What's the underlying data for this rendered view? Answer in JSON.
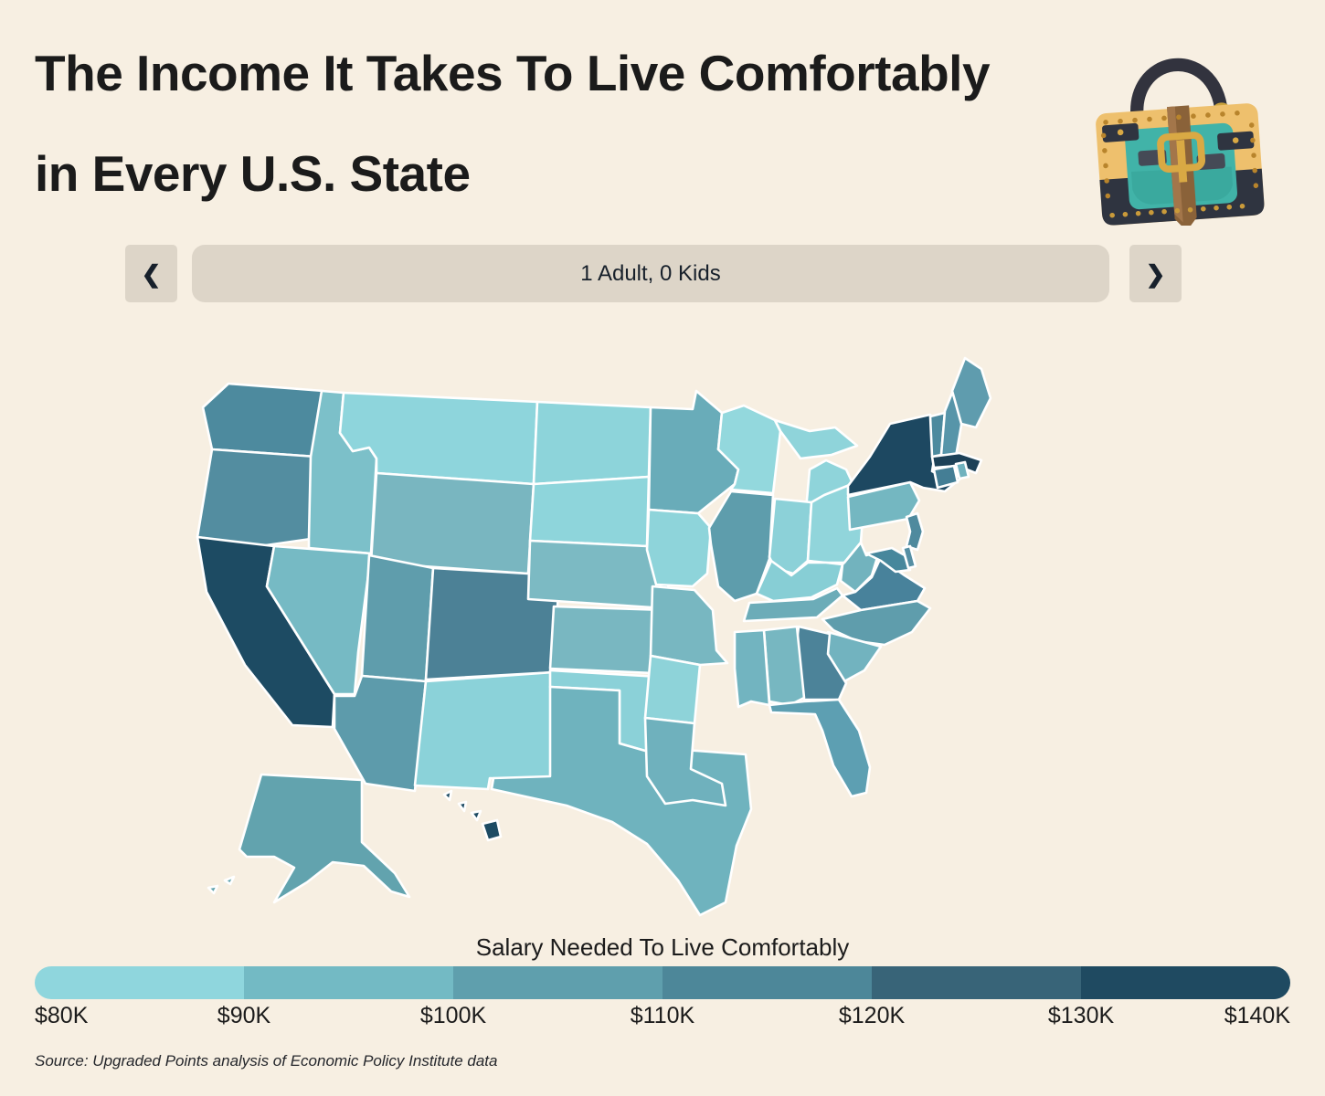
{
  "header": {
    "title_line1": "The Income It Takes To Live Comfortably",
    "title_line2": "in Every U.S. State"
  },
  "nav": {
    "scenario_label": "1 Adult, 0 Kids",
    "prev_icon": "❮",
    "next_icon": "❯"
  },
  "footer": {
    "source": "Source: Upgraded Points analysis of Economic Policy Institute data"
  },
  "icons": {
    "logo": "handbag-illustration",
    "prev": "chevron-left",
    "next": "chevron-right"
  },
  "theme": {
    "bg": "#f7efe2",
    "ink": "#1b1b1b",
    "panel": "#ddd5c8",
    "map_stroke": "#ffffff",
    "logo_tan": "#eec06d",
    "logo_teal": "#41b3a8",
    "logo_dark": "#2f3440",
    "logo_gold": "#c08a2f",
    "logo_brown": "#8a6239"
  },
  "chart_data": {
    "type": "choropleth",
    "title": "The Income It Takes To Live Comfortably in Every U.S. State",
    "scenario": "1 Adult, 0 Kids",
    "legend_title": "Salary Needed To Live Comfortably",
    "legend_position": "bottom",
    "scale_ticks": [
      "$80K",
      "$90K",
      "$100K",
      "$110K",
      "$120K",
      "$130K",
      "$140K"
    ],
    "scale_colors": [
      "#8fd6dd",
      "#73bac4",
      "#5f9fad",
      "#4d8799",
      "#386478",
      "#1f4a61"
    ],
    "scale_range": [
      "$80K",
      "$140K"
    ],
    "states": [
      {
        "id": "AL",
        "name": "Alabama",
        "fill": "#77b7c1",
        "bucket": "$90K-$100K"
      },
      {
        "id": "AK",
        "name": "Alaska",
        "fill": "#62a3ae",
        "bucket": "$90K-$100K"
      },
      {
        "id": "AZ",
        "name": "Arizona",
        "fill": "#5d9bab",
        "bucket": "$100K-$110K"
      },
      {
        "id": "AR",
        "name": "Arkansas",
        "fill": "#8ed3d9",
        "bucket": "$80K-$90K"
      },
      {
        "id": "CA",
        "name": "California",
        "fill": "#1d4b63",
        "bucket": "$130K-$140K"
      },
      {
        "id": "CO",
        "name": "Colorado",
        "fill": "#4c8196",
        "bucket": "$110K-$120K"
      },
      {
        "id": "CT",
        "name": "Connecticut",
        "fill": "#447e95",
        "bucket": "$110K-$120K"
      },
      {
        "id": "DE",
        "name": "Delaware",
        "fill": "#568fa3",
        "bucket": "$100K-$110K"
      },
      {
        "id": "FL",
        "name": "Florida",
        "fill": "#5d9fb2",
        "bucket": "$100K-$110K"
      },
      {
        "id": "GA",
        "name": "Georgia",
        "fill": "#4c8399",
        "bucket": "$110K-$120K"
      },
      {
        "id": "HI",
        "name": "Hawaii",
        "fill": "#1d4b63",
        "bucket": "$130K-$140K"
      },
      {
        "id": "ID",
        "name": "Idaho",
        "fill": "#7cc0c9",
        "bucket": "$90K-$100K"
      },
      {
        "id": "IL",
        "name": "Illinois",
        "fill": "#5e9dac",
        "bucket": "$100K-$110K"
      },
      {
        "id": "IN",
        "name": "Indiana",
        "fill": "#8cd1d8",
        "bucket": "$80K-$90K"
      },
      {
        "id": "IA",
        "name": "Iowa",
        "fill": "#8ed4da",
        "bucket": "$80K-$90K"
      },
      {
        "id": "KS",
        "name": "Kansas",
        "fill": "#79b7c1",
        "bucket": "$90K-$100K"
      },
      {
        "id": "KY",
        "name": "Kentucky",
        "fill": "#87ced5",
        "bucket": "$80K-$90K"
      },
      {
        "id": "LA",
        "name": "Louisiana",
        "fill": "#6fb1bd",
        "bucket": "$90K-$100K"
      },
      {
        "id": "ME",
        "name": "Maine",
        "fill": "#5f9cae",
        "bucket": "$100K-$110K"
      },
      {
        "id": "MD",
        "name": "Maryland",
        "fill": "#47879c",
        "bucket": "$110K-$120K"
      },
      {
        "id": "MA",
        "name": "Massachusetts",
        "fill": "#1d4157",
        "bucket": "$130K-$140K"
      },
      {
        "id": "MI",
        "name": "Michigan",
        "fill": "#8fd4da",
        "bucket": "$80K-$90K"
      },
      {
        "id": "MN",
        "name": "Minnesota",
        "fill": "#69acb9",
        "bucket": "$90K-$100K"
      },
      {
        "id": "MS",
        "name": "Mississippi",
        "fill": "#72b4c0",
        "bucket": "$90K-$100K"
      },
      {
        "id": "MO",
        "name": "Missouri",
        "fill": "#78b7c1",
        "bucket": "$90K-$100K"
      },
      {
        "id": "MT",
        "name": "Montana",
        "fill": "#8ed5dc",
        "bucket": "$80K-$90K"
      },
      {
        "id": "NE",
        "name": "Nebraska",
        "fill": "#7cbac3",
        "bucket": "$90K-$100K"
      },
      {
        "id": "NV",
        "name": "Nevada",
        "fill": "#76bac4",
        "bucket": "$90K-$100K"
      },
      {
        "id": "NH",
        "name": "New Hampshire",
        "fill": "#5795a9",
        "bucket": "$100K-$110K"
      },
      {
        "id": "NJ",
        "name": "New Jersey",
        "fill": "#4f8a9e",
        "bucket": "$110K-$120K"
      },
      {
        "id": "NM",
        "name": "New Mexico",
        "fill": "#8bd2d9",
        "bucket": "$80K-$90K"
      },
      {
        "id": "NY",
        "name": "New York",
        "fill": "#1d4861",
        "bucket": "$130K-$140K"
      },
      {
        "id": "NC",
        "name": "North Carolina",
        "fill": "#5f9dac",
        "bucket": "$100K-$110K"
      },
      {
        "id": "ND",
        "name": "North Dakota",
        "fill": "#8dd4da",
        "bucket": "$80K-$90K"
      },
      {
        "id": "OH",
        "name": "Ohio",
        "fill": "#91d5db",
        "bucket": "$80K-$90K"
      },
      {
        "id": "OK",
        "name": "Oklahoma",
        "fill": "#8bd1d8",
        "bucket": "$80K-$90K"
      },
      {
        "id": "OR",
        "name": "Oregon",
        "fill": "#538da0",
        "bucket": "$110K-$120K"
      },
      {
        "id": "PA",
        "name": "Pennsylvania",
        "fill": "#74b7c1",
        "bucket": "$90K-$100K"
      },
      {
        "id": "RI",
        "name": "Rhode Island",
        "fill": "#70b2be",
        "bucket": "$90K-$100K"
      },
      {
        "id": "SC",
        "name": "South Carolina",
        "fill": "#72b3bf",
        "bucket": "$90K-$100K"
      },
      {
        "id": "SD",
        "name": "South Dakota",
        "fill": "#8ed5db",
        "bucket": "$80K-$90K"
      },
      {
        "id": "TN",
        "name": "Tennessee",
        "fill": "#6cacb8",
        "bucket": "$90K-$100K"
      },
      {
        "id": "TX",
        "name": "Texas",
        "fill": "#6fb3be",
        "bucket": "$90K-$100K"
      },
      {
        "id": "UT",
        "name": "Utah",
        "fill": "#5f9dac",
        "bucket": "$100K-$110K"
      },
      {
        "id": "VT",
        "name": "Vermont",
        "fill": "#4d8a9e",
        "bucket": "$110K-$120K"
      },
      {
        "id": "VA",
        "name": "Virginia",
        "fill": "#48829b",
        "bucket": "$110K-$120K"
      },
      {
        "id": "WA",
        "name": "Washington",
        "fill": "#4d8a9e",
        "bucket": "$110K-$120K"
      },
      {
        "id": "WV",
        "name": "West Virginia",
        "fill": "#72b3be",
        "bucket": "$90K-$100K"
      },
      {
        "id": "WI",
        "name": "Wisconsin",
        "fill": "#93d8dd",
        "bucket": "$80K-$90K"
      },
      {
        "id": "WY",
        "name": "Wyoming",
        "fill": "#79b6c0",
        "bucket": "$90K-$100K"
      }
    ]
  }
}
